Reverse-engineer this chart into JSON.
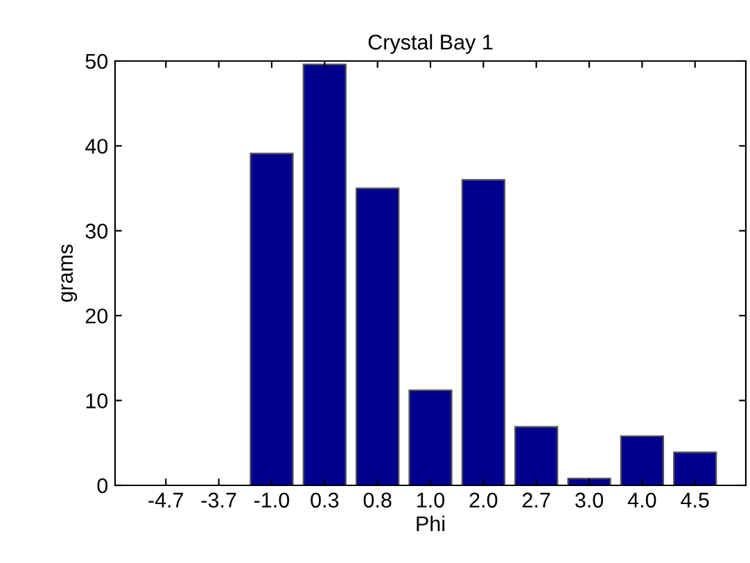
{
  "chart_data": {
    "type": "bar",
    "title": "Crystal Bay 1",
    "xlabel": "Phi",
    "ylabel": "grams",
    "categories": [
      "-4.7",
      "-3.7",
      "-1.0",
      "0.3",
      "0.8",
      "1.0",
      "2.0",
      "2.7",
      "3.0",
      "4.0",
      "4.5"
    ],
    "values": [
      0,
      0,
      39.1,
      49.6,
      35.0,
      11.2,
      36.0,
      6.9,
      0.8,
      5.8,
      3.9
    ],
    "color": "#00008f",
    "ylim": [
      0,
      50
    ],
    "yticks": [
      0,
      10,
      20,
      30,
      40,
      50
    ],
    "grid": false
  }
}
